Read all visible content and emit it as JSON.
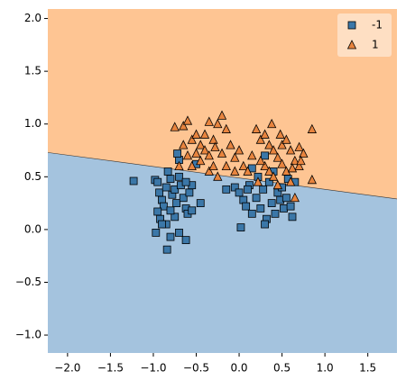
{
  "chart_data": {
    "type": "scatter",
    "xlim": [
      -2.23,
      1.84
    ],
    "ylim": [
      -1.17,
      2.09
    ],
    "xticks": [
      {
        "value": -2.0,
        "label": "−2.0"
      },
      {
        "value": -1.5,
        "label": "−1.5"
      },
      {
        "value": -1.0,
        "label": "−1.0"
      },
      {
        "value": -0.5,
        "label": "−0.5"
      },
      {
        "value": 0,
        "label": "0.0"
      },
      {
        "value": 0.5,
        "label": "0.5"
      },
      {
        "value": 1.0,
        "label": "1.0"
      },
      {
        "value": 1.5,
        "label": "1.5"
      }
    ],
    "yticks": [
      {
        "value": -1.0,
        "label": "−1.0"
      },
      {
        "value": -0.5,
        "label": "−0.5"
      },
      {
        "value": 0,
        "label": "0.0"
      },
      {
        "value": 0.5,
        "label": "0.5"
      },
      {
        "value": 1.0,
        "label": "1.0"
      },
      {
        "value": 1.5,
        "label": "1.5"
      },
      {
        "value": 2.0,
        "label": "2.0"
      }
    ],
    "boundary": {
      "x": [
        -2.23,
        1.84
      ],
      "y": [
        0.73,
        0.29
      ]
    },
    "region_colors": [
      "#a4c3de",
      "#fec593"
    ],
    "legend": "upper right",
    "series": [
      {
        "name": "-1",
        "marker": "square",
        "color": "#3b77a8",
        "x": [
          -1.23,
          -0.98,
          -0.95,
          -0.93,
          -0.9,
          -0.88,
          -0.85,
          -0.83,
          -0.8,
          -0.78,
          -0.75,
          -0.73,
          -0.7,
          -0.68,
          -0.65,
          -0.62,
          -0.6,
          -0.58,
          -0.55,
          -0.5,
          -0.45,
          -0.7,
          -0.72,
          -0.95,
          -0.92,
          -0.85,
          -0.97,
          -0.8,
          -0.7,
          -0.62,
          -0.84,
          -0.75,
          -0.55,
          -0.62,
          -0.8,
          -0.9,
          -0.15,
          -0.05,
          0.0,
          0.05,
          0.08,
          0.12,
          0.15,
          0.2,
          0.22,
          0.25,
          0.28,
          0.3,
          0.32,
          0.35,
          0.38,
          0.4,
          0.42,
          0.45,
          0.48,
          0.5,
          0.52,
          0.55,
          0.6,
          0.62,
          0.57,
          0.3,
          0.02,
          0.15,
          0.1,
          0.65
        ],
        "values": [
          0.46,
          0.47,
          0.45,
          0.35,
          0.28,
          0.22,
          0.4,
          0.55,
          0.48,
          0.33,
          0.38,
          0.25,
          0.5,
          0.42,
          0.3,
          0.2,
          0.15,
          0.35,
          0.42,
          0.62,
          0.25,
          0.66,
          0.72,
          0.17,
          0.1,
          0.05,
          -0.03,
          -0.07,
          -0.03,
          -0.1,
          -0.19,
          0.12,
          0.18,
          0.45,
          0.18,
          0.05,
          0.38,
          0.4,
          0.35,
          0.28,
          0.22,
          0.42,
          0.15,
          0.3,
          0.5,
          0.2,
          0.38,
          0.7,
          0.1,
          0.45,
          0.25,
          0.55,
          0.15,
          0.35,
          0.28,
          0.4,
          0.2,
          0.3,
          0.22,
          0.12,
          0.48,
          0.05,
          0.02,
          0.58,
          0.38,
          0.45
        ]
      },
      {
        "name": "1",
        "marker": "triangle",
        "color": "#e8843e",
        "x": [
          -0.75,
          -0.65,
          -0.6,
          -0.55,
          -0.5,
          -0.45,
          -0.4,
          -0.35,
          -0.3,
          -0.25,
          -0.2,
          -0.15,
          -0.1,
          -0.05,
          0.0,
          0.05,
          0.1,
          -0.6,
          -0.55,
          -0.45,
          -0.35,
          -0.3,
          -0.25,
          -0.2,
          -0.4,
          -0.65,
          -0.7,
          -0.5,
          -0.15,
          -0.35,
          -0.28,
          -0.05,
          0.2,
          0.25,
          0.3,
          0.35,
          0.4,
          0.45,
          0.5,
          0.55,
          0.6,
          0.65,
          0.7,
          0.75,
          0.85,
          0.3,
          0.35,
          0.4,
          0.45,
          0.5,
          0.55,
          0.6,
          0.65,
          0.7,
          0.85,
          0.25,
          0.15,
          0.38,
          0.48,
          0.62,
          0.22,
          0.72
        ],
        "values": [
          0.97,
          0.98,
          1.03,
          0.85,
          0.9,
          0.8,
          0.75,
          0.7,
          0.85,
          1.0,
          1.08,
          0.95,
          0.8,
          0.68,
          0.75,
          0.6,
          0.55,
          0.7,
          0.6,
          0.65,
          0.55,
          0.6,
          0.5,
          0.72,
          0.9,
          0.8,
          0.6,
          0.72,
          0.6,
          1.02,
          0.78,
          0.55,
          0.95,
          0.85,
          0.9,
          0.8,
          0.75,
          0.68,
          0.8,
          0.85,
          0.75,
          0.65,
          0.78,
          0.72,
          0.95,
          0.6,
          0.55,
          0.5,
          0.42,
          0.62,
          0.55,
          0.45,
          0.3,
          0.6,
          0.47,
          0.65,
          0.7,
          1.0,
          0.9,
          0.58,
          0.45,
          0.65
        ]
      }
    ]
  }
}
